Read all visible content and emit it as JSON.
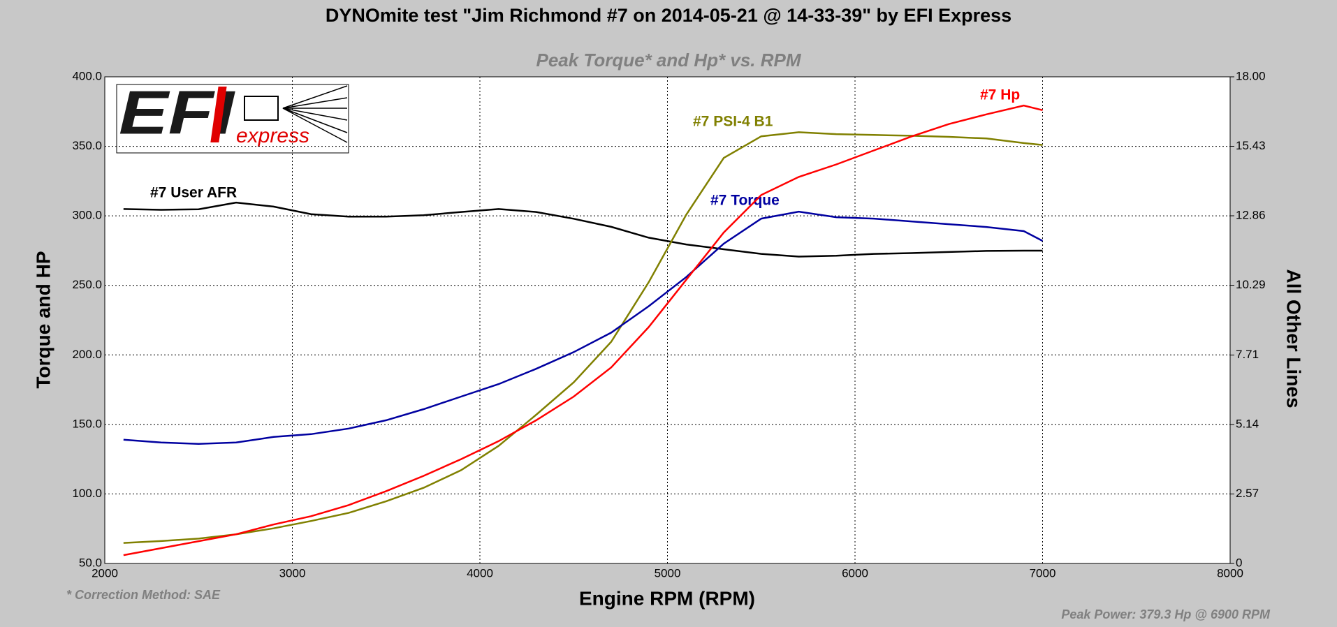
{
  "logo": {
    "main": "EFI",
    "sub": "express"
  },
  "chart_data": {
    "type": "line",
    "title": "DYNOmite test \"Jim Richmond #7 on 2014-05-21 @ 14-33-39\" by EFI Express",
    "subtitle": "Peak Torque* and Hp* vs. RPM",
    "x_label": "Engine RPM (RPM)",
    "y_label": "Torque and HP",
    "y2_label": "All Other Lines",
    "annotations": [
      "* Correction Method: SAE",
      "Peak Power: 379.3 Hp @ 6900 RPM"
    ],
    "grid": true,
    "xlim": [
      2000,
      8000
    ],
    "xticks": [
      2000,
      3000,
      4000,
      5000,
      6000,
      7000,
      8000
    ],
    "ylim": [
      50,
      400
    ],
    "yticks": [
      {
        "value": 50,
        "label": "50.0"
      },
      {
        "value": 100,
        "label": "100.0"
      },
      {
        "value": 150,
        "label": "150.0"
      },
      {
        "value": 200,
        "label": "200.0"
      },
      {
        "value": 250,
        "label": "250.0"
      },
      {
        "value": 300,
        "label": "300.0"
      },
      {
        "value": 350,
        "label": "350.0"
      },
      {
        "value": 400,
        "label": "400.0"
      }
    ],
    "y2lim": [
      0,
      18
    ],
    "y2ticks": [
      0,
      2.57,
      5.14,
      7.71,
      10.29,
      12.86,
      15.43,
      {
        "value": 18,
        "label": "18.00"
      }
    ],
    "x": [
      2100,
      2300,
      2500,
      2700,
      2900,
      3100,
      3300,
      3500,
      3700,
      3900,
      4100,
      4300,
      4500,
      4700,
      4900,
      5100,
      5300,
      5500,
      5700,
      5900,
      6100,
      6300,
      6500,
      6700,
      6900,
      7000
    ],
    "series": [
      {
        "name": "#7 User AFR",
        "color": "#000000",
        "axis": "y2",
        "values": [
          13.11,
          13.08,
          13.1,
          13.35,
          13.2,
          12.92,
          12.83,
          12.83,
          12.88,
          13.0,
          13.11,
          13.0,
          12.75,
          12.45,
          12.05,
          11.8,
          11.62,
          11.45,
          11.35,
          11.38,
          11.45,
          11.48,
          11.52,
          11.56,
          11.57,
          11.57
        ]
      },
      {
        "name": "#7 PSI-4 B1",
        "color": "#808000",
        "axis": "y2",
        "values": [
          0.76,
          0.83,
          0.92,
          1.08,
          1.3,
          1.57,
          1.87,
          2.3,
          2.8,
          3.45,
          4.35,
          5.5,
          6.7,
          8.2,
          10.4,
          12.9,
          15.0,
          15.8,
          15.95,
          15.88,
          15.85,
          15.82,
          15.78,
          15.72,
          15.55,
          15.48
        ]
      },
      {
        "name": "#7 Torque",
        "color": "#0000a0",
        "values": [
          139,
          137,
          136,
          137,
          141,
          143,
          147,
          153,
          161,
          170,
          179,
          190,
          202,
          216,
          235,
          256,
          280,
          298,
          303,
          299,
          298,
          296,
          294,
          292,
          289,
          282
        ]
      },
      {
        "name": "#7 Hp",
        "color": "#ff0000",
        "values": [
          56,
          61,
          66,
          71,
          78,
          84,
          92,
          102,
          113,
          125,
          138,
          153,
          170,
          191,
          220,
          254,
          288,
          315,
          328,
          337,
          347,
          357,
          366,
          373,
          379.3,
          376
        ]
      }
    ]
  }
}
